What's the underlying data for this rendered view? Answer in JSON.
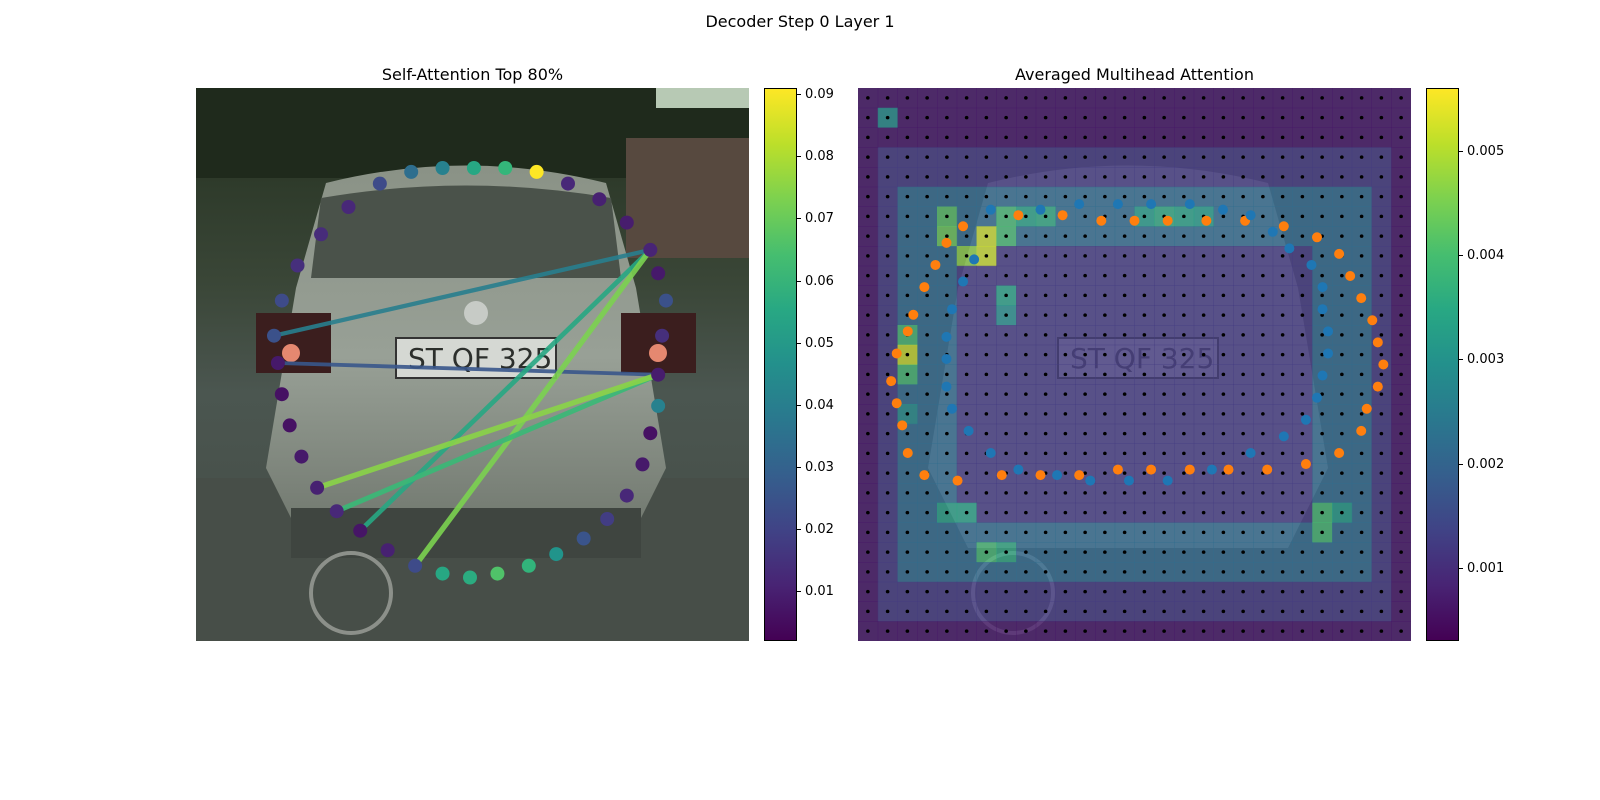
{
  "suptitle": "Decoder Step 0 Layer 1",
  "chart_data": [
    {
      "type": "scatter",
      "title": "Self-Attention Top 80%",
      "colormap": "viridis",
      "colorbar": {
        "min": 0.002,
        "max": 0.091,
        "ticks": [
          "0.01",
          "0.02",
          "0.03",
          "0.04",
          "0.05",
          "0.06",
          "0.07",
          "0.08",
          "0.09"
        ]
      },
      "points": [
        {
          "x": 1.0,
          "y": 0.34,
          "v": 0.024
        },
        {
          "x": 0.99,
          "y": 0.43,
          "v": 0.014
        },
        {
          "x": 0.98,
          "y": 0.53,
          "v": 0.009
        },
        {
          "x": 0.98,
          "y": 0.61,
          "v": 0.041
        },
        {
          "x": 0.96,
          "y": 0.68,
          "v": 0.006
        },
        {
          "x": 0.94,
          "y": 0.76,
          "v": 0.008
        },
        {
          "x": 0.9,
          "y": 0.84,
          "v": 0.012
        },
        {
          "x": 0.85,
          "y": 0.9,
          "v": 0.018
        },
        {
          "x": 0.79,
          "y": 0.95,
          "v": 0.025
        },
        {
          "x": 0.72,
          "y": 0.99,
          "v": 0.048
        },
        {
          "x": 0.65,
          "y": 1.02,
          "v": 0.06
        },
        {
          "x": 0.57,
          "y": 1.04,
          "v": 0.066
        },
        {
          "x": 0.5,
          "y": 1.05,
          "v": 0.057
        },
        {
          "x": 0.43,
          "y": 1.04,
          "v": 0.055
        },
        {
          "x": 0.36,
          "y": 1.02,
          "v": 0.022
        },
        {
          "x": 0.29,
          "y": 0.98,
          "v": 0.01
        },
        {
          "x": 0.22,
          "y": 0.93,
          "v": 0.007
        },
        {
          "x": 0.16,
          "y": 0.88,
          "v": 0.012
        },
        {
          "x": 0.11,
          "y": 0.82,
          "v": 0.01
        },
        {
          "x": 0.07,
          "y": 0.74,
          "v": 0.008
        },
        {
          "x": 0.04,
          "y": 0.66,
          "v": 0.006
        },
        {
          "x": 0.02,
          "y": 0.58,
          "v": 0.006
        },
        {
          "x": 0.01,
          "y": 0.5,
          "v": 0.008
        },
        {
          "x": 0.0,
          "y": 0.43,
          "v": 0.024
        },
        {
          "x": 0.02,
          "y": 0.34,
          "v": 0.022
        },
        {
          "x": 0.06,
          "y": 0.25,
          "v": 0.014
        },
        {
          "x": 0.12,
          "y": 0.17,
          "v": 0.013
        },
        {
          "x": 0.19,
          "y": 0.1,
          "v": 0.012
        },
        {
          "x": 0.27,
          "y": 0.04,
          "v": 0.022
        },
        {
          "x": 0.35,
          "y": 0.01,
          "v": 0.034
        },
        {
          "x": 0.43,
          "y": 0.0,
          "v": 0.041
        },
        {
          "x": 0.51,
          "y": 0.0,
          "v": 0.055
        },
        {
          "x": 0.59,
          "y": 0.0,
          "v": 0.061
        },
        {
          "x": 0.67,
          "y": 0.01,
          "v": 0.091
        },
        {
          "x": 0.75,
          "y": 0.04,
          "v": 0.012
        },
        {
          "x": 0.83,
          "y": 0.08,
          "v": 0.01
        },
        {
          "x": 0.9,
          "y": 0.14,
          "v": 0.009
        },
        {
          "x": 0.96,
          "y": 0.21,
          "v": 0.011
        },
        {
          "x": 0.98,
          "y": 0.27,
          "v": 0.008
        }
      ],
      "edges": [
        {
          "from": 23,
          "to": 37,
          "v": 0.04
        },
        {
          "from": 22,
          "to": 2,
          "v": 0.026
        },
        {
          "from": 37,
          "to": 16,
          "v": 0.055
        },
        {
          "from": 37,
          "to": 14,
          "v": 0.073
        },
        {
          "from": 2,
          "to": 17,
          "v": 0.062
        },
        {
          "from": 2,
          "to": 18,
          "v": 0.075
        }
      ]
    },
    {
      "type": "heatmap",
      "title": "Averaged Multihead Attention",
      "colormap": "viridis",
      "colorbar": {
        "min": 0.0003,
        "max": 0.0056,
        "ticks": [
          "0.001",
          "0.002",
          "0.003",
          "0.004",
          "0.005"
        ]
      },
      "grid": {
        "rows": 28,
        "cols": 28,
        "description": "hollow rectangular ring of attention around the car outline"
      },
      "hot_cells": [
        {
          "r": 1,
          "c": 1,
          "v": 0.003
        },
        {
          "r": 6,
          "c": 7,
          "v": 0.004
        },
        {
          "r": 7,
          "c": 7,
          "v": 0.004
        },
        {
          "r": 6,
          "c": 8,
          "v": 0.0034
        },
        {
          "r": 6,
          "c": 9,
          "v": 0.0036
        },
        {
          "r": 6,
          "c": 14,
          "v": 0.0033
        },
        {
          "r": 6,
          "c": 15,
          "v": 0.0036
        },
        {
          "r": 6,
          "c": 16,
          "v": 0.0034
        },
        {
          "r": 6,
          "c": 17,
          "v": 0.0033
        },
        {
          "r": 7,
          "c": 6,
          "v": 0.0052
        },
        {
          "r": 8,
          "c": 6,
          "v": 0.0052
        },
        {
          "r": 6,
          "c": 4,
          "v": 0.0042
        },
        {
          "r": 7,
          "c": 4,
          "v": 0.0044
        },
        {
          "r": 8,
          "c": 5,
          "v": 0.0047
        },
        {
          "r": 10,
          "c": 7,
          "v": 0.0034
        },
        {
          "r": 11,
          "c": 7,
          "v": 0.003
        },
        {
          "r": 12,
          "c": 2,
          "v": 0.004
        },
        {
          "r": 13,
          "c": 2,
          "v": 0.0052
        },
        {
          "r": 14,
          "c": 2,
          "v": 0.004
        },
        {
          "r": 16,
          "c": 2,
          "v": 0.003
        },
        {
          "r": 23,
          "c": 6,
          "v": 0.004
        },
        {
          "r": 23,
          "c": 7,
          "v": 0.0036
        },
        {
          "r": 21,
          "c": 23,
          "v": 0.004
        },
        {
          "r": 22,
          "c": 23,
          "v": 0.004
        },
        {
          "r": 21,
          "c": 4,
          "v": 0.0034
        },
        {
          "r": 21,
          "c": 5,
          "v": 0.0034
        },
        {
          "r": 21,
          "c": 24,
          "v": 0.0033
        }
      ],
      "series": [
        {
          "color": "#ff7f0e",
          "points": [
            [
              0.19,
              0.25
            ],
            [
              0.29,
              0.23
            ],
            [
              0.37,
              0.23
            ],
            [
              0.44,
              0.24
            ],
            [
              0.5,
              0.24
            ],
            [
              0.56,
              0.24
            ],
            [
              0.63,
              0.24
            ],
            [
              0.7,
              0.24
            ],
            [
              0.77,
              0.25
            ],
            [
              0.83,
              0.27
            ],
            [
              0.87,
              0.3
            ],
            [
              0.89,
              0.34
            ],
            [
              0.91,
              0.38
            ],
            [
              0.93,
              0.42
            ],
            [
              0.94,
              0.46
            ],
            [
              0.95,
              0.5
            ],
            [
              0.94,
              0.54
            ],
            [
              0.92,
              0.58
            ],
            [
              0.91,
              0.62
            ],
            [
              0.87,
              0.66
            ],
            [
              0.81,
              0.68
            ],
            [
              0.74,
              0.69
            ],
            [
              0.67,
              0.69
            ],
            [
              0.6,
              0.69
            ],
            [
              0.53,
              0.69
            ],
            [
              0.47,
              0.69
            ],
            [
              0.4,
              0.7
            ],
            [
              0.33,
              0.7
            ],
            [
              0.26,
              0.7
            ],
            [
              0.18,
              0.71
            ],
            [
              0.12,
              0.7
            ],
            [
              0.09,
              0.66
            ],
            [
              0.08,
              0.61
            ],
            [
              0.07,
              0.57
            ],
            [
              0.06,
              0.53
            ],
            [
              0.07,
              0.48
            ],
            [
              0.09,
              0.44
            ],
            [
              0.1,
              0.41
            ],
            [
              0.12,
              0.36
            ],
            [
              0.14,
              0.32
            ],
            [
              0.16,
              0.28
            ]
          ]
        },
        {
          "color": "#1f77b4",
          "points": [
            [
              0.24,
              0.22
            ],
            [
              0.33,
              0.22
            ],
            [
              0.4,
              0.21
            ],
            [
              0.47,
              0.21
            ],
            [
              0.53,
              0.21
            ],
            [
              0.6,
              0.21
            ],
            [
              0.66,
              0.22
            ],
            [
              0.71,
              0.23
            ],
            [
              0.75,
              0.26
            ],
            [
              0.78,
              0.29
            ],
            [
              0.82,
              0.32
            ],
            [
              0.84,
              0.36
            ],
            [
              0.84,
              0.4
            ],
            [
              0.85,
              0.44
            ],
            [
              0.85,
              0.48
            ],
            [
              0.84,
              0.52
            ],
            [
              0.83,
              0.56
            ],
            [
              0.81,
              0.6
            ],
            [
              0.77,
              0.63
            ],
            [
              0.71,
              0.66
            ],
            [
              0.64,
              0.69
            ],
            [
              0.56,
              0.71
            ],
            [
              0.49,
              0.71
            ],
            [
              0.42,
              0.71
            ],
            [
              0.36,
              0.7
            ],
            [
              0.29,
              0.69
            ],
            [
              0.24,
              0.66
            ],
            [
              0.2,
              0.62
            ],
            [
              0.17,
              0.58
            ],
            [
              0.16,
              0.54
            ],
            [
              0.16,
              0.49
            ],
            [
              0.16,
              0.45
            ],
            [
              0.17,
              0.4
            ],
            [
              0.19,
              0.35
            ],
            [
              0.21,
              0.31
            ]
          ]
        }
      ]
    }
  ]
}
